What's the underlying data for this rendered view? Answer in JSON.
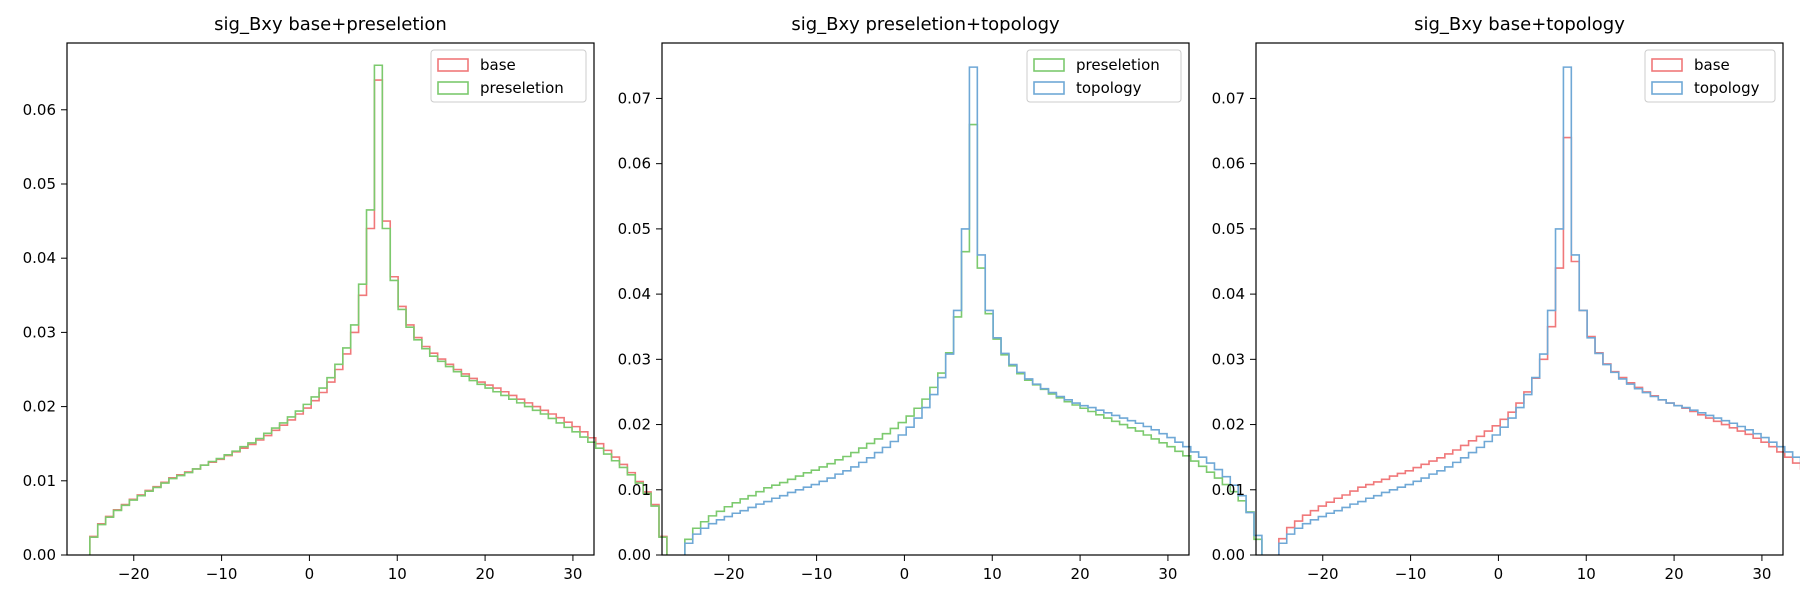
{
  "chart_data": [
    {
      "type": "histogram",
      "title": "sig_Bxy base+preseletion",
      "xlabel": "",
      "ylabel": "",
      "xlim": [
        -27.6,
        32.4
      ],
      "ylim": [
        0,
        0.069
      ],
      "xticks": [
        -20,
        -10,
        0,
        10,
        20,
        30
      ],
      "xtick_labels": [
        "−20",
        "−10",
        "0",
        "10",
        "20",
        "30"
      ],
      "yticks": [
        0,
        0.01,
        0.02,
        0.03,
        0.04,
        0.05,
        0.06
      ],
      "ytick_labels": [
        "0.00",
        "0.01",
        "0.02",
        "0.03",
        "0.04",
        "0.05",
        "0.06"
      ],
      "legend_position": "top-right",
      "series": [
        {
          "name": "base",
          "color": "#f0787a",
          "bin_start": -25,
          "bin_width": 0.9,
          "values": [
            0.0025,
            0.0042,
            0.0052,
            0.0061,
            0.0068,
            0.0075,
            0.0081,
            0.0087,
            0.0092,
            0.0098,
            0.0104,
            0.0108,
            0.0112,
            0.0116,
            0.0121,
            0.0125,
            0.0129,
            0.0134,
            0.0139,
            0.0144,
            0.0149,
            0.0155,
            0.0161,
            0.0168,
            0.0175,
            0.0182,
            0.019,
            0.0198,
            0.0208,
            0.0219,
            0.0233,
            0.025,
            0.0271,
            0.03,
            0.035,
            0.044,
            0.064,
            0.045,
            0.0375,
            0.0335,
            0.031,
            0.0293,
            0.0281,
            0.0272,
            0.0264,
            0.0257,
            0.025,
            0.0244,
            0.0238,
            0.0233,
            0.0229,
            0.0225,
            0.022,
            0.0215,
            0.021,
            0.0205,
            0.02,
            0.0195,
            0.019,
            0.0185,
            0.0179,
            0.0173,
            0.0166,
            0.0158,
            0.015,
            0.0141,
            0.0132,
            0.0122,
            0.0111,
            0.0099,
            0.0085,
            0.0068,
            0.0025
          ]
        },
        {
          "name": "preseletion",
          "color": "#7cca6e",
          "bin_start": -25,
          "bin_width": 0.9,
          "values": [
            0.0024,
            0.0041,
            0.0051,
            0.006,
            0.0067,
            0.0074,
            0.008,
            0.0086,
            0.0091,
            0.0097,
            0.0103,
            0.0107,
            0.0111,
            0.0116,
            0.0121,
            0.0126,
            0.013,
            0.0135,
            0.014,
            0.0146,
            0.0151,
            0.0157,
            0.0164,
            0.0171,
            0.0178,
            0.0186,
            0.0194,
            0.0203,
            0.0213,
            0.0225,
            0.0239,
            0.0257,
            0.0279,
            0.031,
            0.0365,
            0.0465,
            0.066,
            0.044,
            0.037,
            0.0331,
            0.0307,
            0.029,
            0.0278,
            0.0268,
            0.0261,
            0.0254,
            0.0247,
            0.0241,
            0.0235,
            0.023,
            0.0225,
            0.022,
            0.0215,
            0.021,
            0.0205,
            0.02,
            0.0195,
            0.019,
            0.0184,
            0.0178,
            0.0172,
            0.0166,
            0.0159,
            0.0152,
            0.0144,
            0.0136,
            0.0127,
            0.0118,
            0.0108,
            0.0097,
            0.0083,
            0.0066,
            0.0024
          ]
        }
      ]
    },
    {
      "type": "histogram",
      "title": "sig_Bxy preseletion+topology",
      "xlabel": "",
      "ylabel": "",
      "xlim": [
        -27.6,
        32.4
      ],
      "ylim": [
        0,
        0.0785
      ],
      "xticks": [
        -20,
        -10,
        0,
        10,
        20,
        30
      ],
      "xtick_labels": [
        "−20",
        "−10",
        "0",
        "10",
        "20",
        "30"
      ],
      "yticks": [
        0,
        0.01,
        0.02,
        0.03,
        0.04,
        0.05,
        0.06,
        0.07
      ],
      "ytick_labels": [
        "0.00",
        "0.01",
        "0.02",
        "0.03",
        "0.04",
        "0.05",
        "0.06",
        "0.07"
      ],
      "legend_position": "top-right",
      "series": [
        {
          "name": "preseletion",
          "color": "#7cca6e",
          "bin_start": -25,
          "bin_width": 0.9,
          "values": [
            0.0024,
            0.0041,
            0.0051,
            0.006,
            0.0067,
            0.0074,
            0.008,
            0.0086,
            0.0091,
            0.0097,
            0.0103,
            0.0107,
            0.0111,
            0.0116,
            0.0121,
            0.0126,
            0.013,
            0.0135,
            0.014,
            0.0146,
            0.0151,
            0.0157,
            0.0164,
            0.0171,
            0.0178,
            0.0186,
            0.0194,
            0.0203,
            0.0213,
            0.0225,
            0.0239,
            0.0257,
            0.0279,
            0.031,
            0.0365,
            0.0465,
            0.066,
            0.044,
            0.037,
            0.0331,
            0.0307,
            0.029,
            0.0278,
            0.0268,
            0.0261,
            0.0254,
            0.0247,
            0.0241,
            0.0235,
            0.023,
            0.0225,
            0.022,
            0.0215,
            0.021,
            0.0205,
            0.02,
            0.0195,
            0.019,
            0.0184,
            0.0178,
            0.0172,
            0.0166,
            0.0159,
            0.0152,
            0.0144,
            0.0136,
            0.0127,
            0.0118,
            0.0108,
            0.0097,
            0.0083,
            0.0066,
            0.0024
          ]
        },
        {
          "name": "topology",
          "color": "#6fa8d6",
          "bin_start": -25,
          "bin_width": 0.9,
          "values": [
            0.0018,
            0.0032,
            0.0041,
            0.0048,
            0.0054,
            0.0059,
            0.0064,
            0.0068,
            0.0073,
            0.0078,
            0.0082,
            0.0087,
            0.0091,
            0.0096,
            0.01,
            0.0104,
            0.0108,
            0.0113,
            0.0118,
            0.0124,
            0.0129,
            0.0135,
            0.0142,
            0.0149,
            0.0157,
            0.0165,
            0.0174,
            0.0184,
            0.0196,
            0.021,
            0.0226,
            0.0246,
            0.0272,
            0.0308,
            0.0375,
            0.05,
            0.0748,
            0.046,
            0.0375,
            0.0333,
            0.0309,
            0.0292,
            0.028,
            0.027,
            0.0262,
            0.0255,
            0.0249,
            0.0243,
            0.0238,
            0.0233,
            0.0229,
            0.0226,
            0.0222,
            0.0218,
            0.0214,
            0.021,
            0.0206,
            0.0202,
            0.0197,
            0.0192,
            0.0186,
            0.018,
            0.0173,
            0.0166,
            0.0158,
            0.015,
            0.0141,
            0.0131,
            0.012,
            0.0107,
            0.0091,
            0.0065,
            0.003
          ]
        }
      ]
    },
    {
      "type": "histogram",
      "title": "sig_Bxy base+topology",
      "xlabel": "",
      "ylabel": "",
      "xlim": [
        -27.6,
        32.4
      ],
      "ylim": [
        0,
        0.0785
      ],
      "xticks": [
        -20,
        -10,
        0,
        10,
        20,
        30
      ],
      "xtick_labels": [
        "−20",
        "−10",
        "0",
        "10",
        "20",
        "30"
      ],
      "yticks": [
        0,
        0.01,
        0.02,
        0.03,
        0.04,
        0.05,
        0.06,
        0.07
      ],
      "ytick_labels": [
        "0.00",
        "0.01",
        "0.02",
        "0.03",
        "0.04",
        "0.05",
        "0.06",
        "0.07"
      ],
      "legend_position": "top-right",
      "series": [
        {
          "name": "base",
          "color": "#f0787a",
          "bin_start": -25,
          "bin_width": 0.9,
          "values": [
            0.0025,
            0.0042,
            0.0052,
            0.0061,
            0.0068,
            0.0075,
            0.0081,
            0.0087,
            0.0092,
            0.0098,
            0.0104,
            0.0108,
            0.0112,
            0.0116,
            0.0121,
            0.0125,
            0.0129,
            0.0134,
            0.0139,
            0.0144,
            0.0149,
            0.0155,
            0.0161,
            0.0168,
            0.0175,
            0.0182,
            0.019,
            0.0198,
            0.0208,
            0.0219,
            0.0233,
            0.025,
            0.0271,
            0.03,
            0.035,
            0.044,
            0.064,
            0.045,
            0.0375,
            0.0335,
            0.031,
            0.0293,
            0.0281,
            0.0272,
            0.0264,
            0.0257,
            0.025,
            0.0244,
            0.0238,
            0.0233,
            0.0229,
            0.0225,
            0.022,
            0.0215,
            0.021,
            0.0205,
            0.02,
            0.0195,
            0.019,
            0.0185,
            0.0179,
            0.0173,
            0.0166,
            0.0158,
            0.015,
            0.0141,
            0.0132,
            0.0122,
            0.0111,
            0.0099,
            0.0085,
            0.0068,
            0.0025
          ]
        },
        {
          "name": "topology",
          "color": "#6fa8d6",
          "bin_start": -25,
          "bin_width": 0.9,
          "values": [
            0.0018,
            0.0032,
            0.0041,
            0.0048,
            0.0054,
            0.0059,
            0.0064,
            0.0068,
            0.0073,
            0.0078,
            0.0082,
            0.0087,
            0.0091,
            0.0096,
            0.01,
            0.0104,
            0.0108,
            0.0113,
            0.0118,
            0.0124,
            0.0129,
            0.0135,
            0.0142,
            0.0149,
            0.0157,
            0.0165,
            0.0174,
            0.0184,
            0.0196,
            0.021,
            0.0226,
            0.0246,
            0.0272,
            0.0308,
            0.0375,
            0.05,
            0.0748,
            0.046,
            0.0375,
            0.0333,
            0.0309,
            0.0292,
            0.028,
            0.027,
            0.0262,
            0.0255,
            0.0249,
            0.0243,
            0.0238,
            0.0233,
            0.0229,
            0.0226,
            0.0222,
            0.0218,
            0.0214,
            0.021,
            0.0206,
            0.0202,
            0.0197,
            0.0192,
            0.0186,
            0.018,
            0.0173,
            0.0166,
            0.0158,
            0.015,
            0.0141,
            0.0131,
            0.012,
            0.0107,
            0.0091,
            0.0065,
            0.003
          ]
        }
      ]
    }
  ]
}
